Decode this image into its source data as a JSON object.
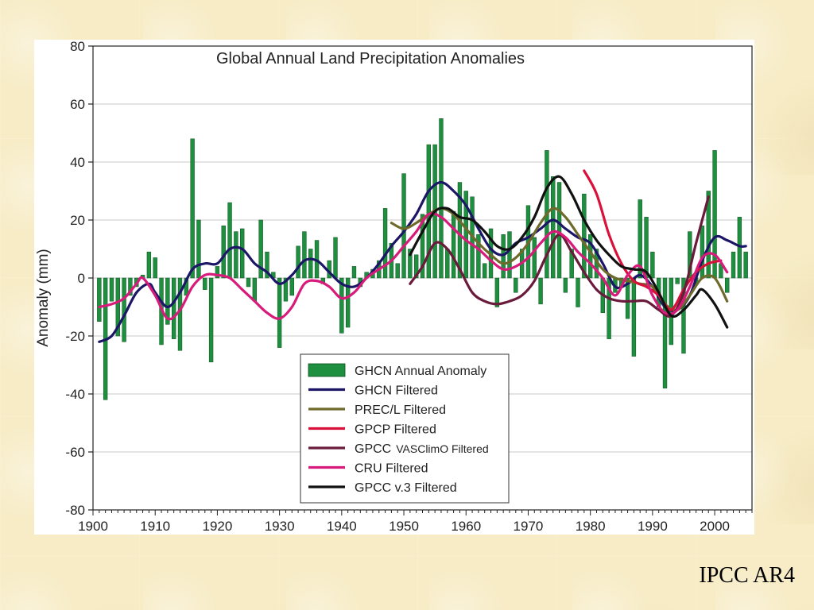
{
  "slide": {
    "credit": "IPCC AR4",
    "background_color": "#f7ecc6"
  },
  "chart_data": {
    "type": "bar",
    "title": "Global Annual Land Precipitation Anomalies",
    "xlabel": "",
    "ylabel": "Anomaly (mm)",
    "xlim": [
      1900,
      2006
    ],
    "ylim": [
      -80,
      80
    ],
    "x_ticks": [
      1900,
      1910,
      1920,
      1930,
      1940,
      1950,
      1960,
      1970,
      1980,
      1990,
      2000
    ],
    "y_ticks": [
      -80,
      -60,
      -40,
      -20,
      0,
      20,
      40,
      60,
      80
    ],
    "grid": true,
    "legend_position": "bottom-center",
    "bars": {
      "name": "GHCN Annual Anomaly",
      "color": "#1e8f3e",
      "years": [
        1901,
        1902,
        1903,
        1904,
        1905,
        1906,
        1907,
        1908,
        1909,
        1910,
        1911,
        1912,
        1913,
        1914,
        1915,
        1916,
        1917,
        1918,
        1919,
        1920,
        1921,
        1922,
        1923,
        1924,
        1925,
        1926,
        1927,
        1928,
        1929,
        1930,
        1931,
        1932,
        1933,
        1934,
        1935,
        1936,
        1937,
        1938,
        1939,
        1940,
        1941,
        1942,
        1943,
        1944,
        1945,
        1946,
        1947,
        1948,
        1949,
        1950,
        1951,
        1952,
        1953,
        1954,
        1955,
        1956,
        1957,
        1958,
        1959,
        1960,
        1961,
        1962,
        1963,
        1964,
        1965,
        1966,
        1967,
        1968,
        1969,
        1970,
        1971,
        1972,
        1973,
        1974,
        1975,
        1976,
        1977,
        1978,
        1979,
        1980,
        1981,
        1982,
        1983,
        1984,
        1985,
        1986,
        1987,
        1988,
        1989,
        1990,
        1991,
        1992,
        1993,
        1994,
        1995,
        1996,
        1997,
        1998,
        1999,
        2000,
        2001,
        2002,
        2003,
        2004,
        2005
      ],
      "values": [
        -15,
        -42,
        -8,
        -20,
        -22,
        -6,
        -3,
        1,
        9,
        7,
        -23,
        -16,
        -21,
        -25,
        -6,
        48,
        20,
        -4,
        -29,
        4,
        18,
        26,
        16,
        17,
        -3,
        -8,
        20,
        9,
        2,
        -24,
        -8,
        -6,
        11,
        16,
        10,
        13,
        -2,
        6,
        14,
        -19,
        -17,
        4,
        -3,
        2,
        3,
        6,
        24,
        12,
        5,
        36,
        10,
        8,
        22,
        46,
        46,
        55,
        10,
        23,
        33,
        30,
        28,
        15,
        5,
        17,
        -10,
        15,
        16,
        -5,
        10,
        25,
        14,
        -9,
        44,
        35,
        33,
        -5,
        10,
        -10,
        29,
        15,
        10,
        -12,
        -21,
        -5,
        -3,
        -14,
        -27,
        27,
        21,
        9,
        -10,
        -38,
        -23,
        -2,
        -26,
        16,
        -2,
        18,
        30,
        44,
        5,
        -5,
        9,
        21,
        9
      ]
    },
    "series": [
      {
        "name": "GHCN Filtered",
        "color": "#1c1666",
        "points": [
          [
            1901,
            -22
          ],
          [
            1903,
            -20
          ],
          [
            1905,
            -13
          ],
          [
            1907,
            -5
          ],
          [
            1909,
            -2
          ],
          [
            1910,
            -5
          ],
          [
            1912,
            -10
          ],
          [
            1914,
            -5
          ],
          [
            1916,
            3
          ],
          [
            1918,
            5
          ],
          [
            1920,
            5
          ],
          [
            1922,
            10
          ],
          [
            1924,
            10
          ],
          [
            1926,
            5
          ],
          [
            1928,
            2
          ],
          [
            1930,
            -2
          ],
          [
            1932,
            1
          ],
          [
            1934,
            6
          ],
          [
            1936,
            6
          ],
          [
            1938,
            2
          ],
          [
            1940,
            -2
          ],
          [
            1942,
            -3
          ],
          [
            1944,
            0
          ],
          [
            1946,
            5
          ],
          [
            1948,
            11
          ],
          [
            1950,
            16
          ],
          [
            1952,
            22
          ],
          [
            1954,
            30
          ],
          [
            1956,
            33
          ],
          [
            1958,
            30
          ],
          [
            1960,
            25
          ],
          [
            1962,
            17
          ],
          [
            1964,
            10
          ],
          [
            1966,
            8
          ],
          [
            1968,
            12
          ],
          [
            1970,
            14
          ],
          [
            1972,
            17
          ],
          [
            1974,
            20
          ],
          [
            1976,
            17
          ],
          [
            1978,
            14
          ],
          [
            1980,
            12
          ],
          [
            1982,
            5
          ],
          [
            1984,
            -3
          ],
          [
            1986,
            -2
          ],
          [
            1988,
            1
          ],
          [
            1990,
            -3
          ],
          [
            1992,
            -10
          ],
          [
            1994,
            -11
          ],
          [
            1996,
            -6
          ],
          [
            1998,
            6
          ],
          [
            2000,
            14
          ],
          [
            2002,
            13
          ],
          [
            2004,
            11
          ],
          [
            2005,
            11
          ]
        ]
      },
      {
        "name": "PREC/L Filtered",
        "color": "#6e6a2c",
        "points": [
          [
            1948,
            19
          ],
          [
            1950,
            17
          ],
          [
            1952,
            19
          ],
          [
            1954,
            22
          ],
          [
            1956,
            24
          ],
          [
            1958,
            22
          ],
          [
            1960,
            17
          ],
          [
            1962,
            12
          ],
          [
            1964,
            8
          ],
          [
            1966,
            5
          ],
          [
            1968,
            7
          ],
          [
            1970,
            12
          ],
          [
            1972,
            19
          ],
          [
            1974,
            24
          ],
          [
            1976,
            21
          ],
          [
            1978,
            15
          ],
          [
            1980,
            9
          ],
          [
            1982,
            3
          ],
          [
            1984,
            0
          ],
          [
            1986,
            -1
          ],
          [
            1988,
            -2
          ],
          [
            1990,
            -3
          ],
          [
            1992,
            -9
          ],
          [
            1994,
            -11
          ],
          [
            1996,
            -6
          ],
          [
            1998,
            0
          ],
          [
            2000,
            0
          ],
          [
            2002,
            -8
          ]
        ]
      },
      {
        "name": "GPCP Filtered",
        "color": "#d8103a",
        "points": [
          [
            1979,
            37
          ],
          [
            1981,
            29
          ],
          [
            1983,
            15
          ],
          [
            1985,
            5
          ],
          [
            1987,
            -1
          ],
          [
            1989,
            -3
          ],
          [
            1991,
            -6
          ],
          [
            1993,
            -11
          ],
          [
            1995,
            -4
          ],
          [
            1997,
            2
          ],
          [
            1999,
            5
          ],
          [
            2001,
            6
          ]
        ]
      },
      {
        "name": "GPCC",
        "name_suffix": "VASClimO Filtered",
        "color": "#6a1a3a",
        "points": [
          [
            1951,
            -2
          ],
          [
            1953,
            4
          ],
          [
            1955,
            12
          ],
          [
            1957,
            10
          ],
          [
            1959,
            3
          ],
          [
            1961,
            -5
          ],
          [
            1963,
            -8
          ],
          [
            1965,
            -9
          ],
          [
            1967,
            -8
          ],
          [
            1969,
            -6
          ],
          [
            1971,
            -1
          ],
          [
            1973,
            8
          ],
          [
            1975,
            15
          ],
          [
            1977,
            9
          ],
          [
            1979,
            2
          ],
          [
            1981,
            -4
          ],
          [
            1983,
            -7
          ],
          [
            1985,
            -8
          ],
          [
            1987,
            -8
          ],
          [
            1989,
            -8
          ],
          [
            1991,
            -11
          ],
          [
            1993,
            -13
          ],
          [
            1995,
            -5
          ],
          [
            1997,
            12
          ],
          [
            1999,
            28
          ]
        ]
      },
      {
        "name": "CRU Filtered",
        "color": "#d81a7a",
        "points": [
          [
            1901,
            -10
          ],
          [
            1903,
            -9
          ],
          [
            1905,
            -7
          ],
          [
            1907,
            -2
          ],
          [
            1908,
            0
          ],
          [
            1910,
            -6
          ],
          [
            1912,
            -14
          ],
          [
            1914,
            -11
          ],
          [
            1916,
            -3
          ],
          [
            1918,
            1
          ],
          [
            1920,
            1
          ],
          [
            1922,
            0
          ],
          [
            1924,
            -4
          ],
          [
            1926,
            -8
          ],
          [
            1928,
            -12
          ],
          [
            1930,
            -14
          ],
          [
            1932,
            -10
          ],
          [
            1934,
            -2
          ],
          [
            1936,
            -1
          ],
          [
            1938,
            -3
          ],
          [
            1940,
            -7
          ],
          [
            1942,
            -5
          ],
          [
            1944,
            0
          ],
          [
            1946,
            3
          ],
          [
            1948,
            6
          ],
          [
            1950,
            11
          ],
          [
            1952,
            16
          ],
          [
            1954,
            22
          ],
          [
            1956,
            21
          ],
          [
            1958,
            17
          ],
          [
            1960,
            13
          ],
          [
            1962,
            10
          ],
          [
            1964,
            6
          ],
          [
            1966,
            3
          ],
          [
            1968,
            4
          ],
          [
            1970,
            7
          ],
          [
            1972,
            12
          ],
          [
            1974,
            16
          ],
          [
            1976,
            14
          ],
          [
            1978,
            9
          ],
          [
            1980,
            5
          ],
          [
            1982,
            0
          ],
          [
            1984,
            -6
          ],
          [
            1986,
            1
          ],
          [
            1988,
            4
          ],
          [
            1990,
            -6
          ],
          [
            1992,
            -12
          ],
          [
            1994,
            -11
          ],
          [
            1996,
            -3
          ],
          [
            1998,
            7
          ],
          [
            2000,
            8
          ],
          [
            2002,
            2
          ]
        ]
      },
      {
        "name": "GPCC v.3 Filtered",
        "color": "#111111",
        "points": [
          [
            1951,
            8
          ],
          [
            1953,
            16
          ],
          [
            1955,
            23
          ],
          [
            1957,
            24
          ],
          [
            1959,
            21
          ],
          [
            1961,
            20
          ],
          [
            1963,
            16
          ],
          [
            1965,
            11
          ],
          [
            1967,
            10
          ],
          [
            1969,
            14
          ],
          [
            1971,
            21
          ],
          [
            1973,
            31
          ],
          [
            1975,
            35
          ],
          [
            1977,
            29
          ],
          [
            1979,
            20
          ],
          [
            1981,
            13
          ],
          [
            1983,
            8
          ],
          [
            1985,
            4
          ],
          [
            1987,
            3
          ],
          [
            1989,
            2
          ],
          [
            1991,
            -5
          ],
          [
            1993,
            -13
          ],
          [
            1995,
            -11
          ],
          [
            1997,
            -6
          ],
          [
            1998,
            -4
          ],
          [
            2000,
            -9
          ],
          [
            2002,
            -17
          ]
        ]
      }
    ]
  }
}
